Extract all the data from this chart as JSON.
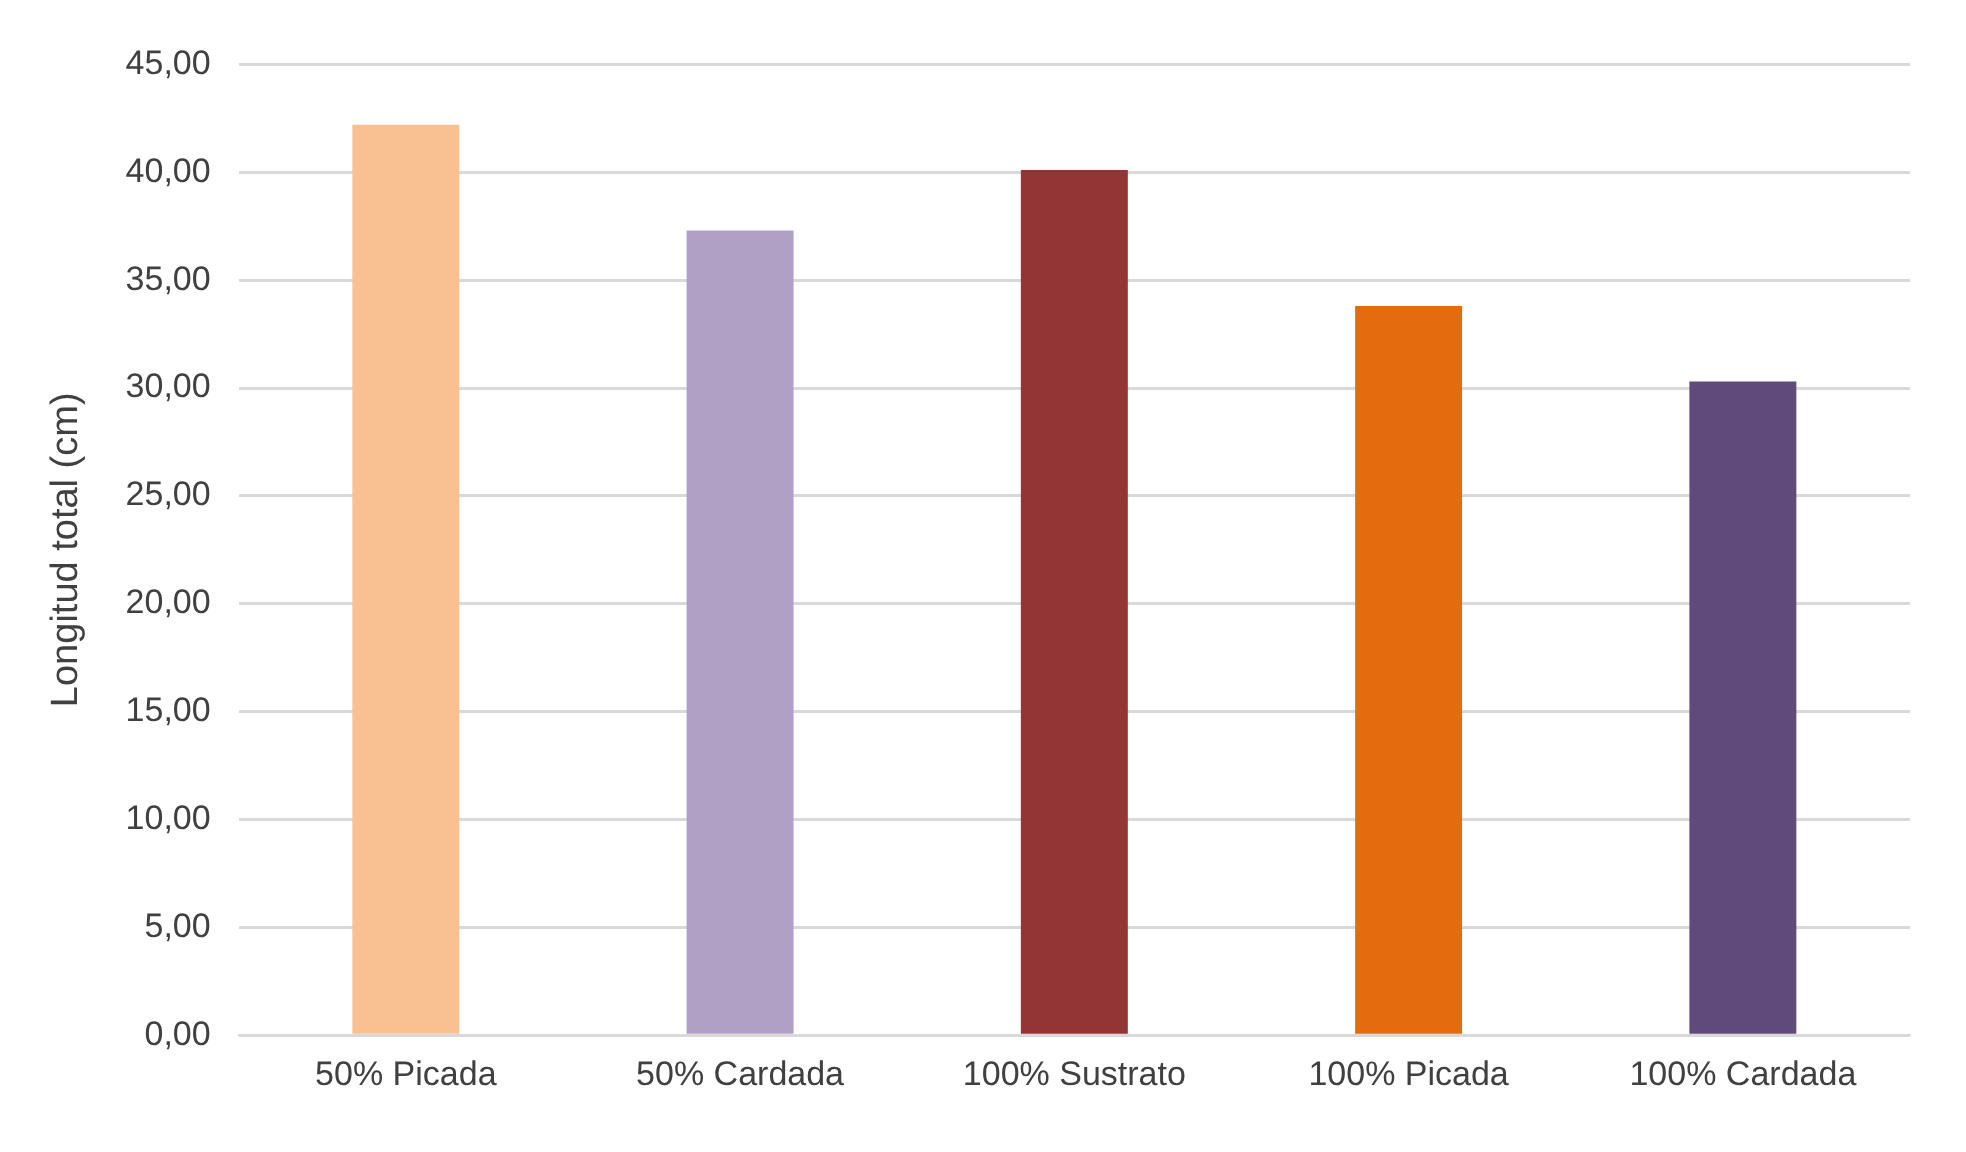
{
  "chart_data": {
    "type": "bar",
    "ylabel": "Longitud total (cm)",
    "categories": [
      "50% Picada",
      "50% Cardada",
      "100% Sustrato",
      "100% Picada",
      "100% Cardada"
    ],
    "values": [
      42.2,
      37.3,
      40.1,
      33.8,
      30.3
    ],
    "colors": [
      "#f9c191",
      "#b0a0c6",
      "#933535",
      "#e36c0c",
      "#604a7b"
    ],
    "ylim": [
      0,
      45
    ],
    "yticks": [
      {
        "value": 0,
        "label": "0,00"
      },
      {
        "value": 5,
        "label": "5,00"
      },
      {
        "value": 10,
        "label": "10,00"
      },
      {
        "value": 15,
        "label": "15,00"
      },
      {
        "value": 20,
        "label": "20,00"
      },
      {
        "value": 25,
        "label": "25,00"
      },
      {
        "value": 30,
        "label": "30,00"
      },
      {
        "value": 35,
        "label": "35,00"
      },
      {
        "value": 40,
        "label": "40,00"
      },
      {
        "value": 45,
        "label": "45,00"
      }
    ],
    "grid": "y",
    "legend": false
  }
}
